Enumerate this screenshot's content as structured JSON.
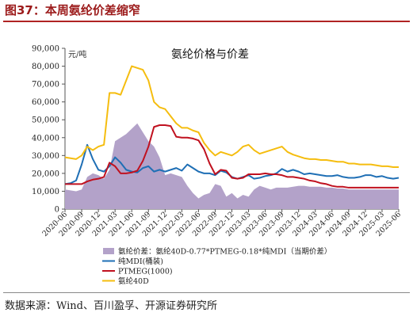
{
  "figure_title": "图37：本周氨纶价差缩窄",
  "source": "数据来源：Wind、百川盈孚、开源证券研究所",
  "chart_data": {
    "type": "line",
    "title": "氨纶价格与价差",
    "yunit": "元/吨",
    "ylim": [
      0,
      90000
    ],
    "yticks": [
      "0",
      "10,000",
      "20,000",
      "30,000",
      "40,000",
      "50,000",
      "60,000",
      "70,000",
      "80,000",
      "90,000"
    ],
    "xlim": [
      "2020-06",
      "2025-06"
    ],
    "xticks": [
      "2020-06",
      "2020-09",
      "2020-12",
      "2021-03",
      "2021-06",
      "2021-09",
      "2021-12",
      "2022-03",
      "2022-06",
      "2022-09",
      "2022-12",
      "2023-03",
      "2023-06",
      "2023-09",
      "2023-12",
      "2024-03",
      "2024-06",
      "2024-09",
      "2024-12",
      "2025-03",
      "2025-06"
    ],
    "grid": false,
    "legend_position": "bottom-left",
    "series": [
      {
        "name": "氨纶价差：氨纶40D-0.77*PTMEG-0.18*纯MDI（当期价差）",
        "type": "area",
        "color": "#b3a2c9",
        "x": [
          "2020-06",
          "2020-07",
          "2020-08",
          "2020-09",
          "2020-10",
          "2020-11",
          "2020-12",
          "2021-01",
          "2021-02",
          "2021-03",
          "2021-04",
          "2021-05",
          "2021-06",
          "2021-07",
          "2021-08",
          "2021-09",
          "2021-10",
          "2021-11",
          "2021-12",
          "2022-01",
          "2022-02",
          "2022-03",
          "2022-04",
          "2022-05",
          "2022-06",
          "2022-07",
          "2022-08",
          "2022-09",
          "2022-10",
          "2022-11",
          "2022-12",
          "2023-01",
          "2023-02",
          "2023-03",
          "2023-04",
          "2023-05",
          "2023-06",
          "2023-07",
          "2023-08",
          "2023-09",
          "2023-10",
          "2023-11",
          "2023-12",
          "2024-01",
          "2024-02",
          "2024-03",
          "2024-04",
          "2024-05",
          "2024-06",
          "2024-07",
          "2024-08",
          "2024-09",
          "2024-10",
          "2024-11",
          "2024-12",
          "2025-01",
          "2025-02",
          "2025-03",
          "2025-04",
          "2025-05",
          "2025-06"
        ],
        "values": [
          11000,
          10500,
          10000,
          11000,
          18000,
          20000,
          19000,
          17000,
          22000,
          38000,
          40000,
          42000,
          45000,
          48000,
          43000,
          38000,
          35000,
          29000,
          19000,
          20000,
          19000,
          18000,
          13000,
          9000,
          6000,
          8000,
          9000,
          14000,
          13000,
          7000,
          9000,
          6000,
          8000,
          7000,
          11000,
          13000,
          12000,
          11000,
          12000,
          12000,
          12000,
          12500,
          13000,
          13000,
          12500,
          12500,
          12500,
          12000,
          12000,
          11500,
          11500,
          11000,
          11000,
          11000,
          11000,
          11000,
          11000,
          11000,
          11000,
          11000,
          11000
        ]
      },
      {
        "name": "纯MDI(桶装)",
        "color": "#1f6fb5",
        "x": [
          "2020-06",
          "2020-07",
          "2020-08",
          "2020-09",
          "2020-10",
          "2020-11",
          "2020-12",
          "2021-01",
          "2021-02",
          "2021-03",
          "2021-04",
          "2021-05",
          "2021-06",
          "2021-07",
          "2021-08",
          "2021-09",
          "2021-10",
          "2021-11",
          "2021-12",
          "2022-01",
          "2022-02",
          "2022-03",
          "2022-04",
          "2022-05",
          "2022-06",
          "2022-07",
          "2022-08",
          "2022-09",
          "2022-10",
          "2022-11",
          "2022-12",
          "2023-01",
          "2023-02",
          "2023-03",
          "2023-04",
          "2023-05",
          "2023-06",
          "2023-07",
          "2023-08",
          "2023-09",
          "2023-10",
          "2023-11",
          "2023-12",
          "2024-01",
          "2024-02",
          "2024-03",
          "2024-04",
          "2024-05",
          "2024-06",
          "2024-07",
          "2024-08",
          "2024-09",
          "2024-10",
          "2024-11",
          "2024-12",
          "2025-01",
          "2025-02",
          "2025-03",
          "2025-04",
          "2025-05",
          "2025-06"
        ],
        "values": [
          14000,
          14500,
          16000,
          25000,
          36000,
          28000,
          22000,
          21000,
          24000,
          29000,
          26000,
          22000,
          21000,
          20500,
          23000,
          24000,
          21000,
          22000,
          21000,
          22000,
          23000,
          21500,
          25000,
          23000,
          21000,
          20000,
          20000,
          19000,
          21500,
          20500,
          18000,
          17000,
          18000,
          19000,
          17000,
          17500,
          18500,
          19000,
          20000,
          22500,
          21000,
          22000,
          21000,
          19500,
          20000,
          19500,
          19000,
          18500,
          18500,
          19000,
          18000,
          17500,
          17500,
          18000,
          19000,
          19000,
          18000,
          18500,
          17500,
          17000,
          17500
        ]
      },
      {
        "name": "PTMEG(1000)",
        "color": "#c0111f",
        "x": [
          "2020-06",
          "2020-07",
          "2020-08",
          "2020-09",
          "2020-10",
          "2020-11",
          "2020-12",
          "2021-01",
          "2021-02",
          "2021-03",
          "2021-04",
          "2021-05",
          "2021-06",
          "2021-07",
          "2021-08",
          "2021-09",
          "2021-10",
          "2021-11",
          "2021-12",
          "2022-01",
          "2022-02",
          "2022-03",
          "2022-04",
          "2022-05",
          "2022-06",
          "2022-07",
          "2022-08",
          "2022-09",
          "2022-10",
          "2022-11",
          "2022-12",
          "2023-01",
          "2023-02",
          "2023-03",
          "2023-04",
          "2023-05",
          "2023-06",
          "2023-07",
          "2023-08",
          "2023-09",
          "2023-10",
          "2023-11",
          "2023-12",
          "2024-01",
          "2024-02",
          "2024-03",
          "2024-04",
          "2024-05",
          "2024-06",
          "2024-07",
          "2024-08",
          "2024-09",
          "2024-10",
          "2024-11",
          "2024-12",
          "2025-01",
          "2025-02",
          "2025-03",
          "2025-04",
          "2025-05",
          "2025-06"
        ],
        "values": [
          14000,
          14000,
          14000,
          14000,
          15500,
          16500,
          17000,
          18000,
          26000,
          24000,
          20000,
          20000,
          20500,
          21500,
          27000,
          35000,
          46000,
          47000,
          47000,
          46500,
          40500,
          40000,
          40000,
          39500,
          38500,
          33500,
          25500,
          19500,
          22000,
          21500,
          17500,
          17000,
          17500,
          19500,
          19500,
          19500,
          20000,
          19500,
          19500,
          19000,
          18000,
          18000,
          17500,
          17000,
          16000,
          15500,
          14500,
          14000,
          13000,
          12500,
          12500,
          12000,
          12000,
          12000,
          12000,
          12000,
          12000,
          12000,
          12000,
          12000,
          12000
        ]
      },
      {
        "name": "氨纶40D",
        "color": "#f5bd0f",
        "x": [
          "2020-06",
          "2020-07",
          "2020-08",
          "2020-09",
          "2020-10",
          "2020-11",
          "2020-12",
          "2021-01",
          "2021-02",
          "2021-03",
          "2021-04",
          "2021-05",
          "2021-06",
          "2021-07",
          "2021-08",
          "2021-09",
          "2021-10",
          "2021-11",
          "2021-12",
          "2022-01",
          "2022-02",
          "2022-03",
          "2022-04",
          "2022-05",
          "2022-06",
          "2022-07",
          "2022-08",
          "2022-09",
          "2022-10",
          "2022-11",
          "2022-12",
          "2023-01",
          "2023-02",
          "2023-03",
          "2023-04",
          "2023-05",
          "2023-06",
          "2023-07",
          "2023-08",
          "2023-09",
          "2023-10",
          "2023-11",
          "2023-12",
          "2024-01",
          "2024-02",
          "2024-03",
          "2024-04",
          "2024-05",
          "2024-06",
          "2024-07",
          "2024-08",
          "2024-09",
          "2024-10",
          "2024-11",
          "2024-12",
          "2025-01",
          "2025-02",
          "2025-03",
          "2025-04",
          "2025-05",
          "2025-06"
        ],
        "values": [
          29000,
          28500,
          28000,
          30000,
          35000,
          33000,
          35000,
          36000,
          65000,
          65000,
          64000,
          72000,
          80000,
          79000,
          78000,
          72000,
          60000,
          57000,
          56000,
          52000,
          48000,
          45500,
          45500,
          44000,
          43000,
          37000,
          33000,
          30000,
          32000,
          31000,
          30000,
          32000,
          35000,
          36000,
          33000,
          31000,
          32000,
          33000,
          34000,
          35000,
          32000,
          30500,
          29500,
          28500,
          28000,
          28000,
          27500,
          27500,
          27000,
          26500,
          26500,
          25500,
          25500,
          25000,
          25000,
          25000,
          24500,
          24000,
          24000,
          23500,
          23500
        ]
      }
    ]
  }
}
